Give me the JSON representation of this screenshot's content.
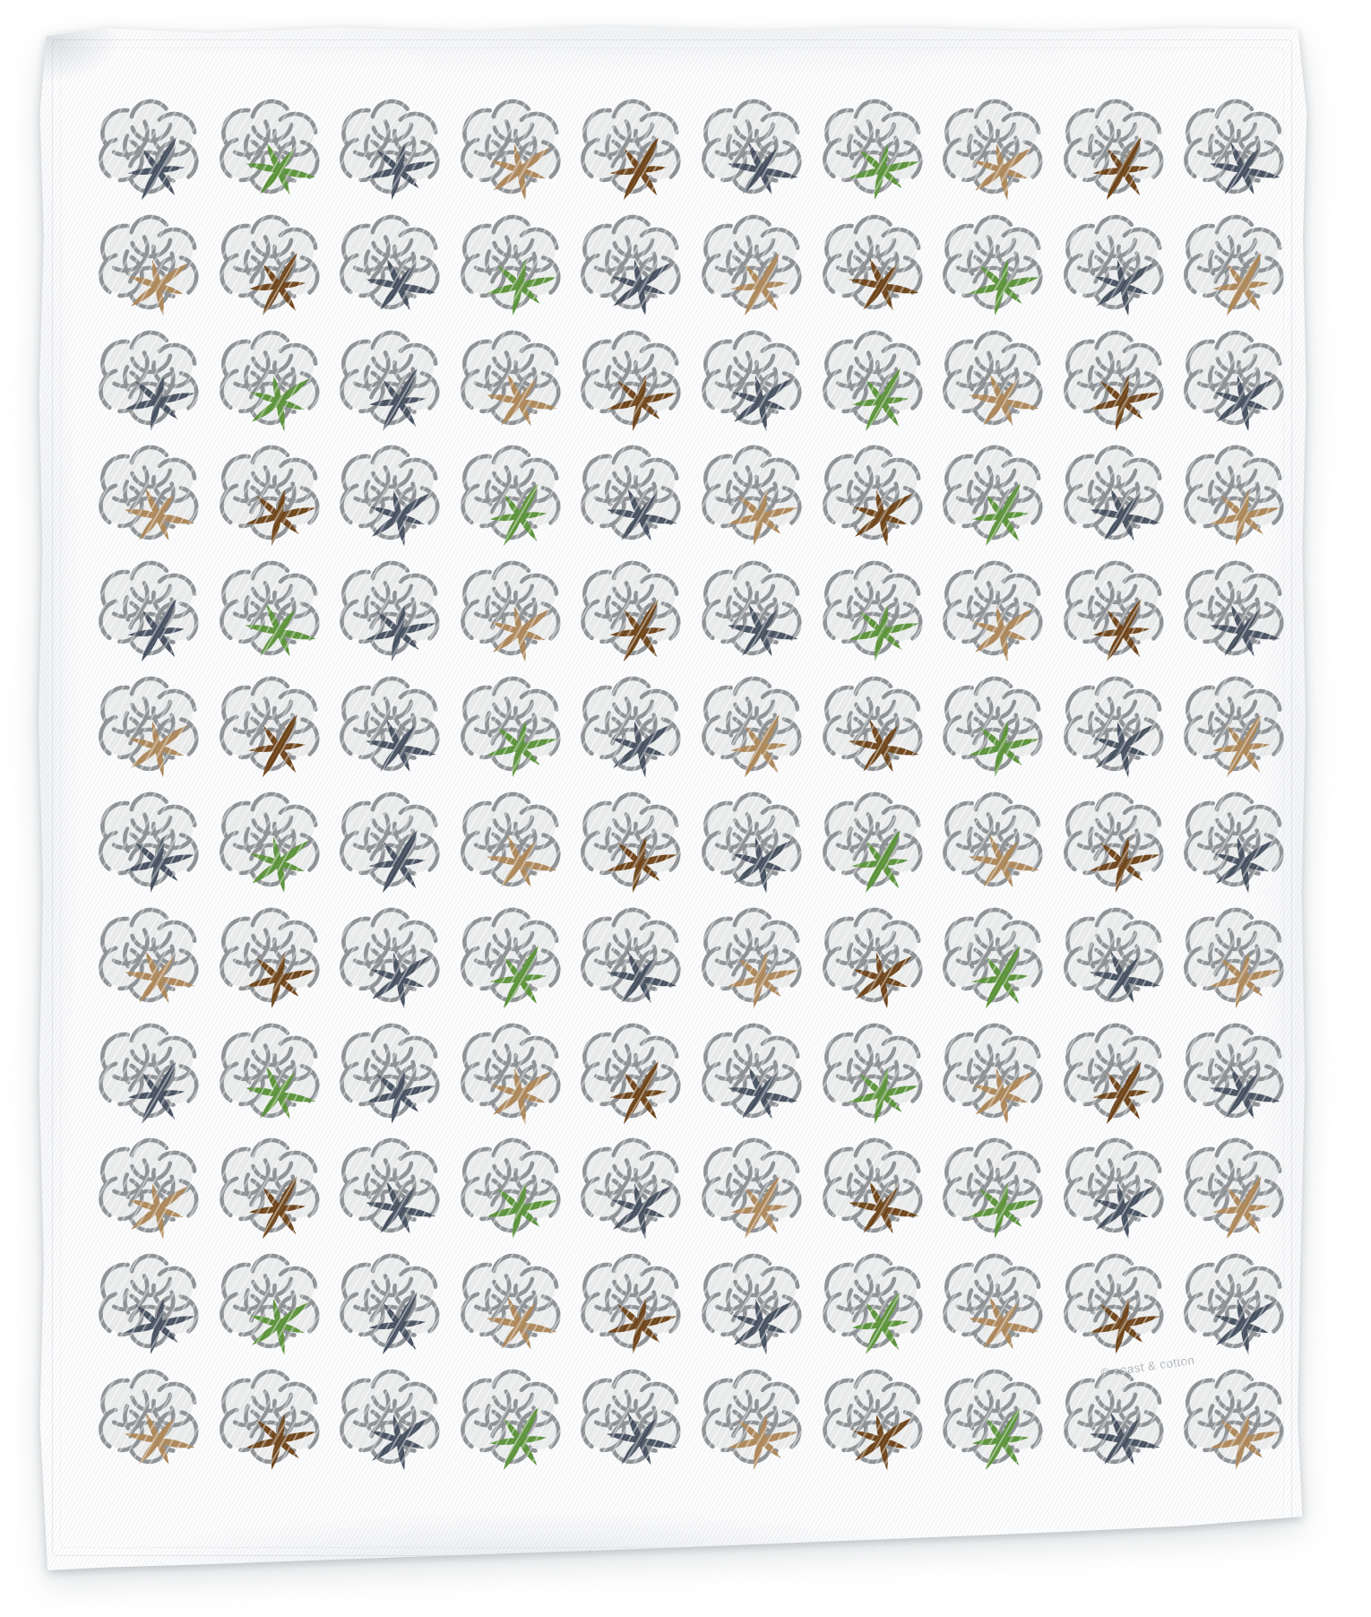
{
  "subject": "white flour-sack tea towel printed with a repeating cotton boll pattern",
  "watermark": {
    "text": "© coast & cotton"
  },
  "colors": {
    "fabric": "#fdfdfe",
    "cloud_outline": "#8e9194",
    "cloud_fill": "#eceded",
    "watermark_text": "#b1b5b7",
    "stems": {
      "navy": "#475160",
      "green": "#5b9338",
      "brown": "#6f4418",
      "tan": "#ae8758"
    }
  },
  "pattern": {
    "motif": "cotton-boll",
    "rows": 12,
    "cols": 10,
    "stem_color_grid": [
      [
        "navy",
        "green",
        "navy",
        "tan",
        "brown",
        "navy",
        "green",
        "tan",
        "brown",
        "navy"
      ],
      [
        "tan",
        "brown",
        "navy",
        "green",
        "navy",
        "tan",
        "brown",
        "green",
        "navy",
        "tan"
      ],
      [
        "navy",
        "green",
        "navy",
        "tan",
        "brown",
        "navy",
        "green",
        "tan",
        "brown",
        "navy"
      ],
      [
        "tan",
        "brown",
        "navy",
        "green",
        "navy",
        "tan",
        "brown",
        "green",
        "navy",
        "tan"
      ],
      [
        "navy",
        "green",
        "navy",
        "tan",
        "brown",
        "navy",
        "green",
        "tan",
        "brown",
        "navy"
      ],
      [
        "tan",
        "brown",
        "navy",
        "green",
        "navy",
        "tan",
        "brown",
        "green",
        "navy",
        "tan"
      ],
      [
        "navy",
        "green",
        "navy",
        "tan",
        "brown",
        "navy",
        "green",
        "tan",
        "brown",
        "navy"
      ],
      [
        "tan",
        "brown",
        "navy",
        "green",
        "navy",
        "tan",
        "brown",
        "green",
        "navy",
        "tan"
      ],
      [
        "navy",
        "green",
        "navy",
        "tan",
        "brown",
        "navy",
        "green",
        "tan",
        "brown",
        "navy"
      ],
      [
        "tan",
        "brown",
        "navy",
        "green",
        "navy",
        "tan",
        "brown",
        "green",
        "navy",
        "tan"
      ],
      [
        "navy",
        "green",
        "navy",
        "tan",
        "brown",
        "navy",
        "green",
        "tan",
        "brown",
        "navy"
      ],
      [
        "tan",
        "brown",
        "navy",
        "green",
        "navy",
        "tan",
        "brown",
        "green",
        "navy",
        "tan"
      ]
    ]
  }
}
